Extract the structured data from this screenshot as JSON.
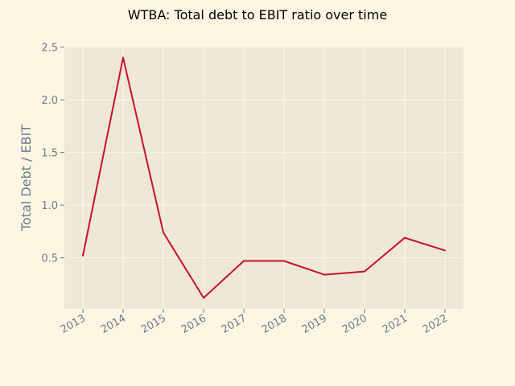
{
  "chart_data": {
    "type": "line",
    "title": "WTBA: Total debt to EBIT ratio over time",
    "xlabel": "",
    "ylabel": "Total Debt / EBIT",
    "categories": [
      "2013",
      "2014",
      "2015",
      "2016",
      "2017",
      "2018",
      "2019",
      "2020",
      "2021",
      "2022"
    ],
    "series": [
      {
        "values": [
          0.52,
          2.4,
          0.74,
          0.12,
          0.47,
          0.47,
          0.34,
          0.37,
          0.69,
          0.57
        ]
      }
    ],
    "yticks": [
      "0.5",
      "1.0",
      "1.5",
      "2.0",
      "2.5"
    ],
    "ylim": [
      0.0,
      2.5
    ],
    "grid": true,
    "colors": {
      "line": "#c8102e",
      "plot_bg": "#efe8d6",
      "page_bg": "#fdf6e3",
      "grid": "#fdf6e3",
      "tick_text": "#6b7b8c"
    }
  }
}
